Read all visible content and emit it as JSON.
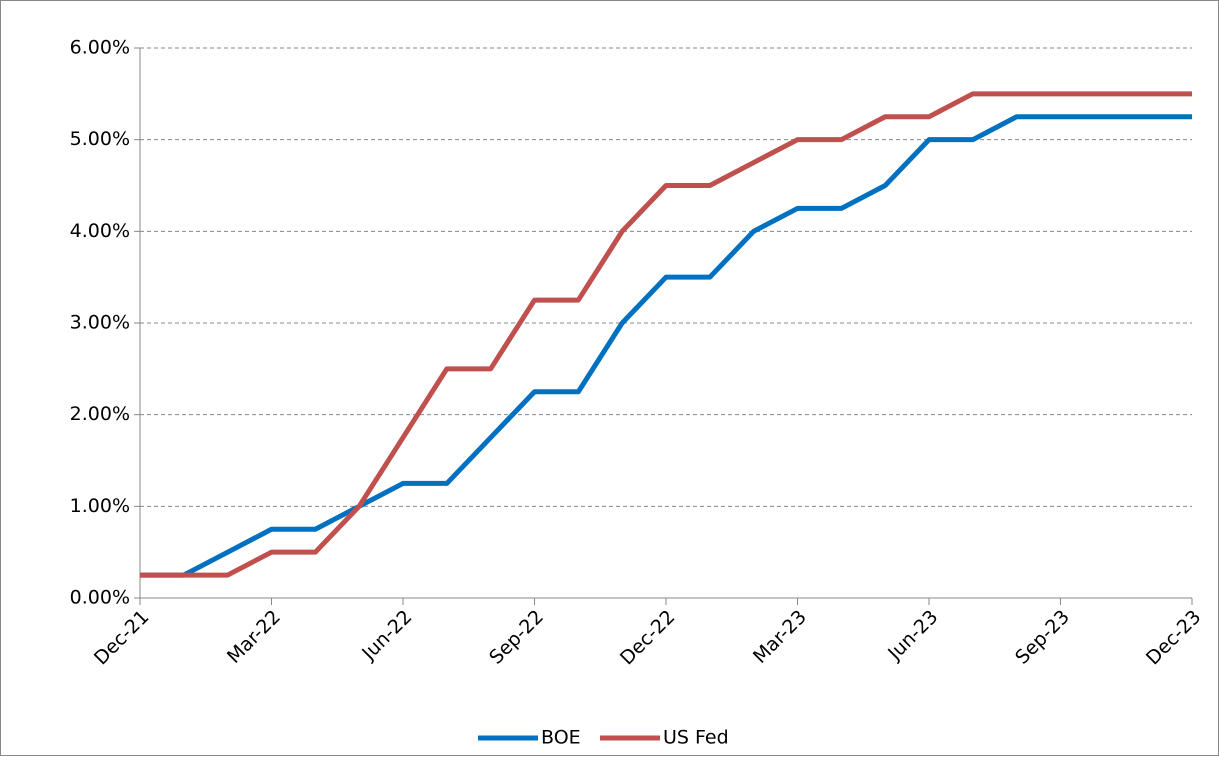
{
  "chart_data": {
    "type": "line",
    "categories": [
      "Dec-21",
      null,
      null,
      "Mar-22",
      null,
      null,
      "Jun-22",
      null,
      null,
      "Sep-22",
      null,
      null,
      "Dec-22",
      null,
      null,
      "Mar-23",
      null,
      null,
      "Jun-23",
      null,
      null,
      "Sep-23",
      null,
      null,
      "Dec-23"
    ],
    "series": [
      {
        "name": "BOE",
        "color": "#0070c0",
        "values": [
          0.25,
          0.25,
          0.5,
          0.75,
          0.75,
          1.0,
          1.25,
          1.25,
          1.75,
          2.25,
          2.25,
          3.0,
          3.5,
          3.5,
          4.0,
          4.25,
          4.25,
          4.5,
          5.0,
          5.0,
          5.25,
          5.25,
          5.25,
          5.25,
          5.25
        ]
      },
      {
        "name": "US Fed",
        "color": "#c0504d",
        "values": [
          0.25,
          0.25,
          0.25,
          0.5,
          0.5,
          1.0,
          1.75,
          2.5,
          2.5,
          3.25,
          3.25,
          4.0,
          4.5,
          4.5,
          4.75,
          5.0,
          5.0,
          5.25,
          5.25,
          5.5,
          5.5,
          5.5,
          5.5,
          5.5,
          5.5
        ]
      }
    ],
    "ylim": [
      0,
      6
    ],
    "yticks": [
      {
        "value": 0,
        "label": "0.00%"
      },
      {
        "value": 1,
        "label": "1.00%"
      },
      {
        "value": 2,
        "label": "2.00%"
      },
      {
        "value": 3,
        "label": "3.00%"
      },
      {
        "value": 4,
        "label": "4.00%"
      },
      {
        "value": 5,
        "label": "5.00%"
      },
      {
        "value": 6,
        "label": "6.00%"
      }
    ],
    "grid": true,
    "legend": "bottom"
  }
}
